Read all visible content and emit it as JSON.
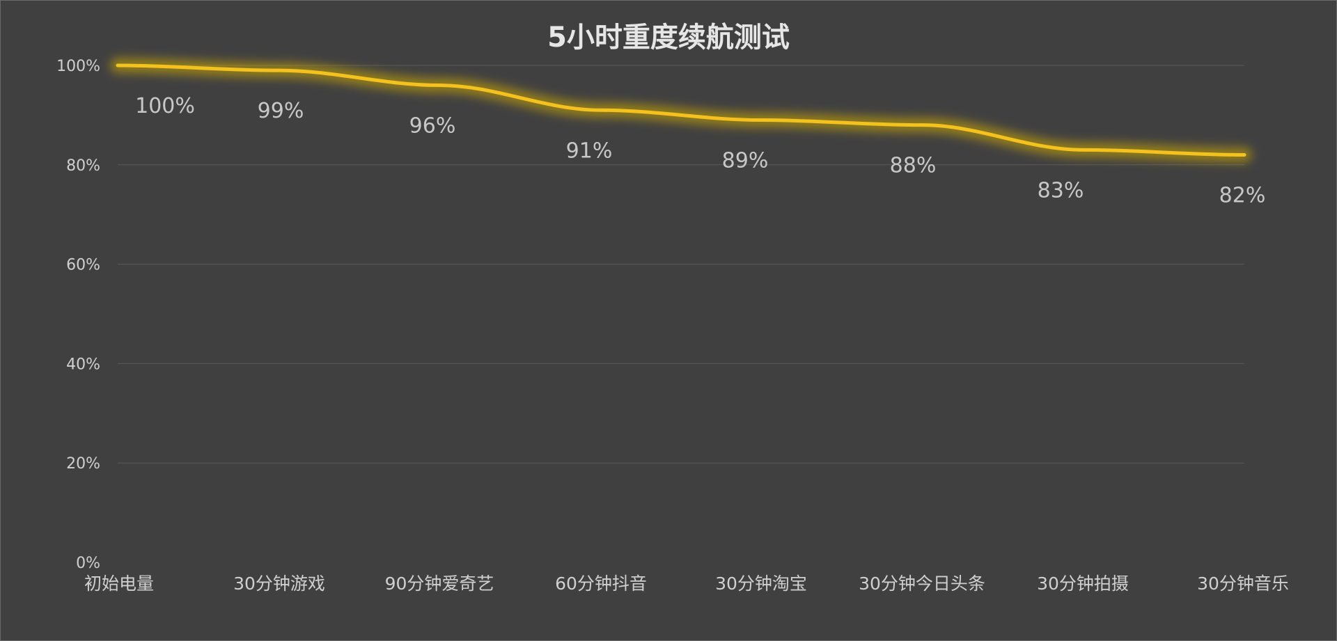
{
  "chart_data": {
    "type": "line",
    "title": "5小时重度续航测试",
    "categories": [
      "初始电量",
      "30分钟游戏",
      "90分钟爱奇艺",
      "60分钟抖音",
      "30分钟淘宝",
      "30分钟今日头条",
      "30分钟拍摄",
      "30分钟音乐"
    ],
    "series": [
      {
        "values": [
          100,
          99,
          96,
          91,
          89,
          88,
          83,
          82
        ],
        "data_labels": [
          "100%",
          "99%",
          "96%",
          "91%",
          "89%",
          "88%",
          "83%",
          "82%"
        ],
        "color": "#f6c21a"
      }
    ],
    "y_ticks": [
      "0%",
      "20%",
      "40%",
      "60%",
      "80%",
      "100%"
    ],
    "ylim": [
      0,
      100
    ],
    "grid": true,
    "legend": "none",
    "colors": {
      "background": "#404040",
      "line": "#f6c21a",
      "glow": "#d4b000",
      "text": "#d0d0d0"
    }
  }
}
